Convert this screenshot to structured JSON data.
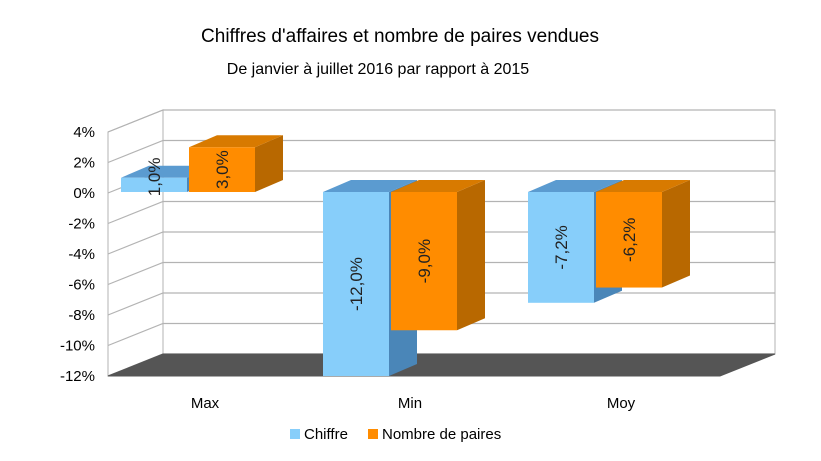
{
  "chart_data": {
    "type": "bar",
    "title": "Chiffres d'affaires et nombre de paires vendues",
    "subtitle": "De janvier à juillet 2016 par rapport à 2015",
    "categories": [
      "Max",
      "Min",
      "Moy"
    ],
    "series": [
      {
        "name": "Chiffre",
        "values": [
          1.0,
          -12.0,
          -7.2
        ],
        "labels": [
          "1,0%",
          "-12,0%",
          "-7,2%"
        ],
        "color": "#87cefa",
        "side_color": "#4a86b8",
        "top_color": "#5b9bd0"
      },
      {
        "name": "Nombre de paires",
        "values": [
          3.0,
          -9.0,
          -6.2
        ],
        "labels": [
          "3,0%",
          "-9,0%",
          "-6,2%"
        ],
        "color": "#ff8c00",
        "side_color": "#b86800",
        "top_color": "#d87a00"
      }
    ],
    "y_ticks": [
      "4%",
      "2%",
      "0%",
      "-2%",
      "-4%",
      "-6%",
      "-8%",
      "-10%",
      "-12%"
    ],
    "y_tick_values": [
      4,
      2,
      0,
      -2,
      -4,
      -6,
      -8,
      -10,
      -12
    ],
    "ylim": [
      -12,
      4
    ],
    "grid": true,
    "legend_position": "bottom",
    "three_d": true
  }
}
